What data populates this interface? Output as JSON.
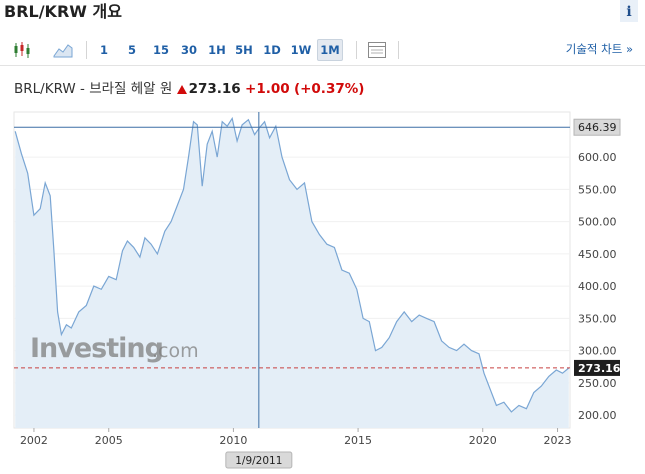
{
  "title": "BRL/KRW 개요",
  "info_icon": "i",
  "toolbar": {
    "intervals": [
      "1",
      "5",
      "15",
      "30",
      "1H",
      "5H",
      "1D",
      "1W",
      "1M"
    ],
    "active_interval": "1M",
    "technical_link": "기술적 차트 »"
  },
  "quote": {
    "name": "BRL/KRW - 브라질 헤알 원",
    "price": "273.16",
    "change": "+1.00",
    "change_pct": "(+0.37%)",
    "direction_icon": "arrow-up-icon"
  },
  "watermark": {
    "brand": "Investing",
    "suffix": ".com"
  },
  "crosshair": {
    "date_label": "1/9/2011",
    "value_label": "646.39",
    "x_year": 2011.02,
    "y_value": 646.39
  },
  "current_price_label": "273.16",
  "colors": {
    "line": "#7aa6d4",
    "fill": "#e4eef7",
    "crosshair": "#3d6fa5",
    "price_line": "#c84040",
    "accent": "#1f5fa6",
    "down": "#d10a0a"
  },
  "chart_data": {
    "type": "area",
    "title": "",
    "xlabel": "",
    "ylabel": "",
    "xlim": [
      2001.2,
      2023.5
    ],
    "ylim": [
      180,
      670
    ],
    "x_ticks": [
      2002,
      2005,
      2010,
      2015,
      2020,
      2023
    ],
    "x_tick_labels": [
      "2002",
      "2005",
      "2010",
      "2015",
      "2020",
      "2023"
    ],
    "y_ticks": [
      200,
      250,
      300,
      350,
      400,
      450,
      500,
      550,
      600
    ],
    "y_tick_labels": [
      "200.00",
      "250.00",
      "300.00",
      "350.00",
      "400.00",
      "450.00",
      "500.00",
      "550.00",
      "600.00"
    ],
    "series": [
      {
        "values": [
          [
            2001.25,
            640
          ],
          [
            2001.5,
            605
          ],
          [
            2001.75,
            575
          ],
          [
            2002.0,
            510
          ],
          [
            2002.25,
            520
          ],
          [
            2002.45,
            560
          ],
          [
            2002.65,
            540
          ],
          [
            2002.8,
            455
          ],
          [
            2002.95,
            360
          ],
          [
            2003.1,
            325
          ],
          [
            2003.3,
            340
          ],
          [
            2003.5,
            335
          ],
          [
            2003.8,
            360
          ],
          [
            2004.1,
            370
          ],
          [
            2004.4,
            400
          ],
          [
            2004.7,
            395
          ],
          [
            2005.0,
            415
          ],
          [
            2005.3,
            410
          ],
          [
            2005.55,
            455
          ],
          [
            2005.75,
            470
          ],
          [
            2006.0,
            460
          ],
          [
            2006.25,
            445
          ],
          [
            2006.45,
            475
          ],
          [
            2006.7,
            465
          ],
          [
            2006.95,
            450
          ],
          [
            2007.25,
            485
          ],
          [
            2007.5,
            500
          ],
          [
            2007.75,
            525
          ],
          [
            2008.0,
            550
          ],
          [
            2008.2,
            600
          ],
          [
            2008.4,
            655
          ],
          [
            2008.55,
            650
          ],
          [
            2008.75,
            555
          ],
          [
            2008.95,
            620
          ],
          [
            2009.15,
            640
          ],
          [
            2009.35,
            600
          ],
          [
            2009.55,
            655
          ],
          [
            2009.75,
            648
          ],
          [
            2009.95,
            660
          ],
          [
            2010.15,
            625
          ],
          [
            2010.35,
            650
          ],
          [
            2010.6,
            658
          ],
          [
            2010.85,
            635
          ],
          [
            2011.05,
            646
          ],
          [
            2011.25,
            655
          ],
          [
            2011.45,
            630
          ],
          [
            2011.7,
            648
          ],
          [
            2011.95,
            600
          ],
          [
            2012.25,
            565
          ],
          [
            2012.55,
            550
          ],
          [
            2012.85,
            560
          ],
          [
            2013.15,
            500
          ],
          [
            2013.45,
            480
          ],
          [
            2013.75,
            465
          ],
          [
            2014.05,
            460
          ],
          [
            2014.35,
            425
          ],
          [
            2014.65,
            420
          ],
          [
            2014.95,
            395
          ],
          [
            2015.2,
            350
          ],
          [
            2015.45,
            345
          ],
          [
            2015.7,
            300
          ],
          [
            2015.95,
            305
          ],
          [
            2016.25,
            320
          ],
          [
            2016.55,
            345
          ],
          [
            2016.85,
            360
          ],
          [
            2017.15,
            345
          ],
          [
            2017.45,
            355
          ],
          [
            2017.75,
            350
          ],
          [
            2018.05,
            345
          ],
          [
            2018.35,
            315
          ],
          [
            2018.65,
            305
          ],
          [
            2018.95,
            300
          ],
          [
            2019.25,
            310
          ],
          [
            2019.55,
            300
          ],
          [
            2019.85,
            295
          ],
          [
            2020.05,
            265
          ],
          [
            2020.3,
            240
          ],
          [
            2020.55,
            215
          ],
          [
            2020.85,
            220
          ],
          [
            2021.15,
            205
          ],
          [
            2021.45,
            215
          ],
          [
            2021.75,
            210
          ],
          [
            2022.05,
            235
          ],
          [
            2022.35,
            245
          ],
          [
            2022.65,
            260
          ],
          [
            2022.95,
            270
          ],
          [
            2023.2,
            265
          ],
          [
            2023.45,
            273
          ]
        ]
      }
    ],
    "reference_lines": {
      "horizontal": [
        646.39,
        273.16
      ],
      "vertical_year": 2011.02
    }
  }
}
